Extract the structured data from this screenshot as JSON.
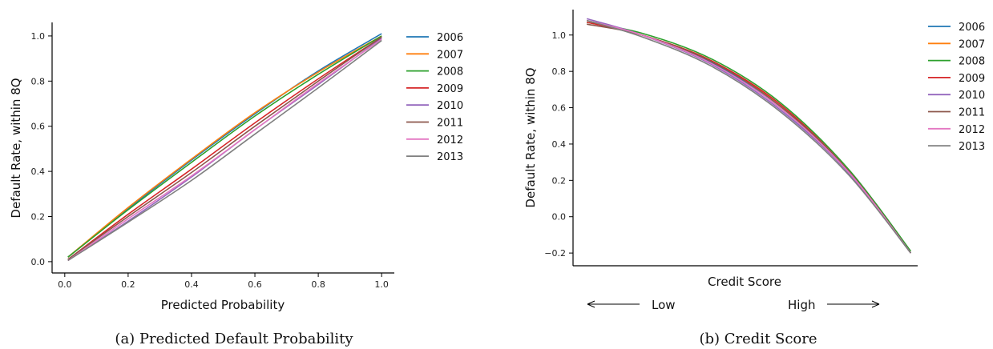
{
  "chart_data": [
    {
      "type": "line",
      "caption": "(a) Predicted Default Probability",
      "xlabel": "Predicted Probability",
      "ylabel": "Default Rate, within 8Q",
      "xlim": [
        -0.04,
        1.04
      ],
      "ylim": [
        -0.05,
        1.06
      ],
      "xticks": [
        0.0,
        0.2,
        0.4,
        0.6,
        0.8,
        1.0
      ],
      "yticks": [
        0.0,
        0.2,
        0.4,
        0.6,
        0.8,
        1.0
      ],
      "xtick_labels": [
        "0.0",
        "0.2",
        "0.4",
        "0.6",
        "0.8",
        "1.0"
      ],
      "ytick_labels": [
        "0.0",
        "0.2",
        "0.4",
        "0.6",
        "0.8",
        "1.0"
      ],
      "legend_position": "right",
      "grid": false,
      "x": [
        0.01,
        0.2,
        0.4,
        0.6,
        0.8,
        1.0
      ],
      "series": [
        {
          "name": "2006",
          "color": "#1f77b4",
          "values": [
            0.02,
            0.235,
            0.45,
            0.655,
            0.845,
            1.01
          ]
        },
        {
          "name": "2007",
          "color": "#ff7f0e",
          "values": [
            0.02,
            0.24,
            0.455,
            0.66,
            0.84,
            1.0
          ]
        },
        {
          "name": "2008",
          "color": "#2ca02c",
          "values": [
            0.02,
            0.23,
            0.44,
            0.645,
            0.83,
            1.0
          ]
        },
        {
          "name": "2009",
          "color": "#d62728",
          "values": [
            0.01,
            0.21,
            0.41,
            0.615,
            0.81,
            0.995
          ]
        },
        {
          "name": "2010",
          "color": "#9467bd",
          "values": [
            0.005,
            0.18,
            0.375,
            0.585,
            0.785,
            0.99
          ]
        },
        {
          "name": "2011",
          "color": "#8c564b",
          "values": [
            0.01,
            0.2,
            0.395,
            0.6,
            0.8,
            0.995
          ]
        },
        {
          "name": "2012",
          "color": "#e377c2",
          "values": [
            0.005,
            0.19,
            0.38,
            0.585,
            0.79,
            0.985
          ]
        },
        {
          "name": "2013",
          "color": "#7f7f7f",
          "values": [
            0.005,
            0.175,
            0.36,
            0.565,
            0.77,
            0.98
          ]
        }
      ]
    },
    {
      "type": "line",
      "caption": "(b) Credit Score",
      "xlabel": "Credit Score",
      "ylabel": "Default Rate, within 8Q",
      "xlim": [
        0,
        1
      ],
      "ylim": [
        -0.27,
        1.14
      ],
      "yticks": [
        -0.2,
        0.0,
        0.2,
        0.4,
        0.6,
        0.8,
        1.0
      ],
      "ytick_labels": [
        "−0.2",
        "0.0",
        "0.2",
        "0.4",
        "0.6",
        "0.8",
        "1.0"
      ],
      "legend_position": "top-right",
      "grid": false,
      "direction_labels": {
        "low": "Low",
        "high": "High"
      },
      "x": [
        0.04,
        0.2,
        0.4,
        0.6,
        0.8,
        0.98
      ],
      "series": [
        {
          "name": "2006",
          "color": "#1f77b4",
          "values": [
            1.08,
            1.0,
            0.85,
            0.6,
            0.24,
            -0.2
          ]
        },
        {
          "name": "2007",
          "color": "#ff7f0e",
          "values": [
            1.08,
            1.0,
            0.86,
            0.61,
            0.25,
            -0.2
          ]
        },
        {
          "name": "2008",
          "color": "#2ca02c",
          "values": [
            1.07,
            1.01,
            0.87,
            0.63,
            0.26,
            -0.19
          ]
        },
        {
          "name": "2009",
          "color": "#d62728",
          "values": [
            1.07,
            1.0,
            0.86,
            0.62,
            0.25,
            -0.2
          ]
        },
        {
          "name": "2010",
          "color": "#9467bd",
          "values": [
            1.09,
            1.0,
            0.84,
            0.59,
            0.24,
            -0.2
          ]
        },
        {
          "name": "2011",
          "color": "#8c564b",
          "values": [
            1.06,
            1.0,
            0.855,
            0.61,
            0.25,
            -0.2
          ]
        },
        {
          "name": "2012",
          "color": "#e377c2",
          "values": [
            1.08,
            1.0,
            0.845,
            0.6,
            0.245,
            -0.2
          ]
        },
        {
          "name": "2013",
          "color": "#7f7f7f",
          "values": [
            1.08,
            0.99,
            0.83,
            0.58,
            0.23,
            -0.2
          ]
        }
      ]
    }
  ]
}
